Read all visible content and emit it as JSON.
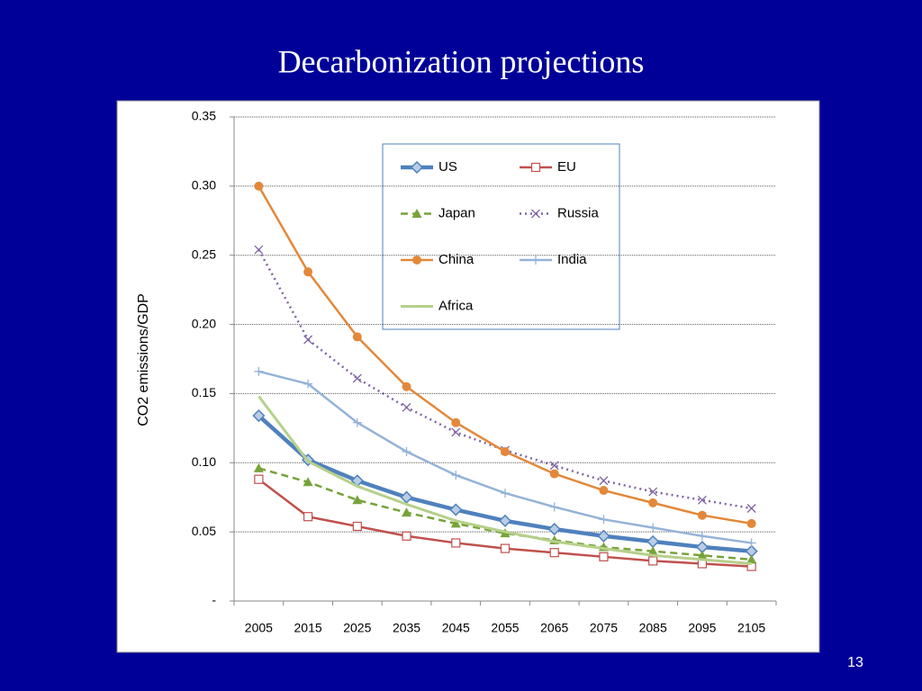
{
  "slide_number": "13",
  "chart_data": {
    "type": "line",
    "title": "Decarbonization projections",
    "y_label": "CO2 emissions/GDP",
    "categories": [
      "2005",
      "2015",
      "2025",
      "2035",
      "2045",
      "2055",
      "2065",
      "2075",
      "2085",
      "2095",
      "2105"
    ],
    "ylim": [
      0,
      0.35
    ],
    "yticks": [
      {
        "value": 0,
        "label": "-"
      },
      0.05,
      {
        "value": 0.1,
        "label": "0.10"
      },
      0.15,
      {
        "value": 0.2,
        "label": "0.20"
      },
      0.25,
      {
        "value": 0.3,
        "label": "0.30"
      },
      0.35
    ],
    "grid": true,
    "series": [
      {
        "name": "US",
        "color": "#4f81bd",
        "values": [
          0.134,
          0.102,
          0.087,
          0.075,
          0.066,
          0.058,
          0.052,
          0.047,
          0.043,
          0.039,
          0.036
        ]
      },
      {
        "name": "EU",
        "color": "#c0504d",
        "values": [
          0.088,
          0.061,
          0.054,
          0.047,
          0.042,
          0.038,
          0.035,
          0.032,
          0.029,
          0.027,
          0.025
        ]
      },
      {
        "name": "Japan",
        "color": "#77a33a",
        "values": [
          0.096,
          0.086,
          0.073,
          0.064,
          0.056,
          0.049,
          0.044,
          0.039,
          0.036,
          0.033,
          0.03
        ]
      },
      {
        "name": "Russia",
        "color": "#8064a2",
        "values": [
          0.254,
          0.189,
          0.161,
          0.14,
          0.122,
          0.109,
          0.098,
          0.087,
          0.079,
          0.073,
          0.067
        ]
      },
      {
        "name": "China",
        "color": "#e3883a",
        "values": [
          0.3,
          0.238,
          0.191,
          0.155,
          0.129,
          0.108,
          0.092,
          0.08,
          0.071,
          0.062,
          0.056
        ]
      },
      {
        "name": "India",
        "color": "#95b3d7",
        "values": [
          0.166,
          0.157,
          0.129,
          0.108,
          0.091,
          0.078,
          0.068,
          0.059,
          0.053,
          0.047,
          0.042
        ]
      },
      {
        "name": "Africa",
        "color": "#b6d08a",
        "values": [
          0.148,
          0.101,
          0.083,
          0.07,
          0.058,
          0.05,
          0.043,
          0.038,
          0.033,
          0.03,
          0.027
        ]
      }
    ]
  }
}
